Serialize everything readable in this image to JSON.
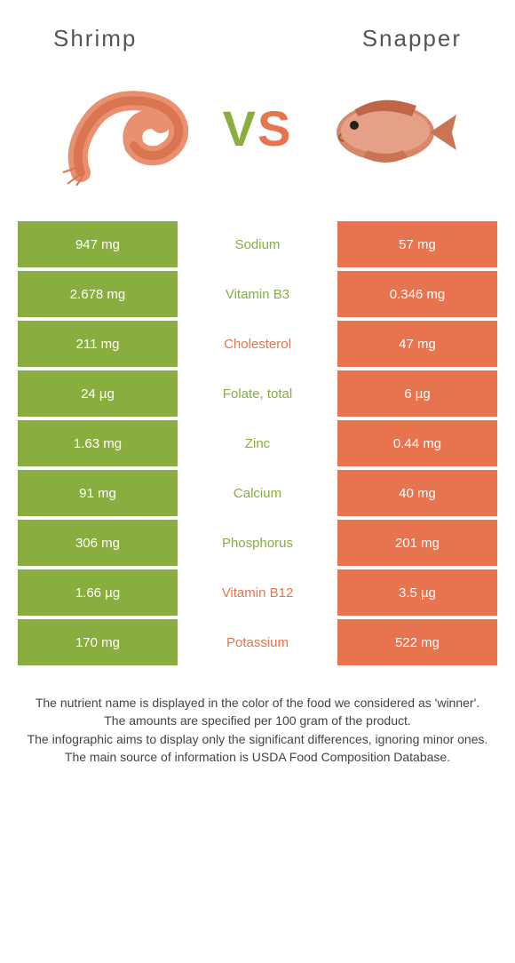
{
  "header": {
    "left_title": "Shrimp",
    "right_title": "Snapper"
  },
  "vs": {
    "v": "V",
    "s": "S"
  },
  "colors": {
    "left": "#8aad3f",
    "right": "#e7744f",
    "bg": "#ffffff"
  },
  "rows": [
    {
      "left": "947 mg",
      "name": "Sodium",
      "right": "57 mg",
      "winner": "left"
    },
    {
      "left": "2.678 mg",
      "name": "Vitamin B3",
      "right": "0.346 mg",
      "winner": "left"
    },
    {
      "left": "211 mg",
      "name": "Cholesterol",
      "right": "47 mg",
      "winner": "right"
    },
    {
      "left": "24 µg",
      "name": "Folate, total",
      "right": "6 µg",
      "winner": "left"
    },
    {
      "left": "1.63 mg",
      "name": "Zinc",
      "right": "0.44 mg",
      "winner": "left"
    },
    {
      "left": "91 mg",
      "name": "Calcium",
      "right": "40 mg",
      "winner": "left"
    },
    {
      "left": "306 mg",
      "name": "Phosphorus",
      "right": "201 mg",
      "winner": "left"
    },
    {
      "left": "1.66 µg",
      "name": "Vitamin B12",
      "right": "3.5 µg",
      "winner": "right"
    },
    {
      "left": "170 mg",
      "name": "Potassium",
      "right": "522 mg",
      "winner": "right"
    }
  ],
  "footer": {
    "line1": "The nutrient name is displayed in the color of the food we considered as 'winner'.",
    "line2": "The amounts are specified per 100 gram of the product.",
    "line3": "The infographic aims to display only the significant differences, ignoring minor ones.",
    "line4": "The main source of information is USDA Food Composition Database."
  }
}
